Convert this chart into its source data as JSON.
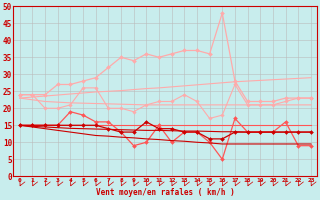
{
  "x": [
    0,
    1,
    2,
    3,
    4,
    5,
    6,
    7,
    8,
    9,
    10,
    11,
    12,
    13,
    14,
    15,
    16,
    17,
    18,
    19,
    20,
    21,
    22,
    23
  ],
  "series": [
    {
      "color": "#FFAAAA",
      "linewidth": 0.8,
      "marker": "D",
      "markersize": 1.8,
      "y": [
        24,
        24,
        20,
        20,
        21,
        26,
        26,
        20,
        20,
        19,
        21,
        22,
        22,
        24,
        22,
        17,
        18,
        27,
        21,
        21,
        21,
        22,
        23,
        23
      ]
    },
    {
      "color": "#FFAAAA",
      "linewidth": 0.8,
      "marker": null,
      "y": [
        23,
        22.5,
        22,
        21.8,
        21.6,
        21.5,
        21.4,
        21.3,
        21.2,
        21.1,
        21,
        21,
        21,
        21,
        21,
        21,
        21,
        21,
        21,
        21,
        21,
        21,
        21,
        21
      ]
    },
    {
      "color": "#FFAAAA",
      "linewidth": 0.8,
      "marker": null,
      "y": [
        23,
        23.3,
        23.6,
        23.9,
        24.2,
        24.5,
        24.8,
        25.0,
        25.2,
        25.5,
        25.8,
        26.0,
        26.3,
        26.6,
        26.9,
        27.2,
        27.5,
        27.8,
        28.0,
        28.2,
        28.4,
        28.6,
        28.8,
        29.0
      ]
    },
    {
      "color": "#FFAAAA",
      "linewidth": 0.9,
      "marker": "D",
      "markersize": 2.0,
      "y": [
        24,
        24,
        24,
        27,
        27,
        28,
        29,
        32,
        35,
        34,
        36,
        35,
        36,
        37,
        37,
        36,
        48,
        28,
        22,
        22,
        22,
        23,
        23,
        23
      ]
    },
    {
      "color": "#FF5555",
      "linewidth": 0.9,
      "marker": "D",
      "markersize": 2.0,
      "y": [
        15,
        15,
        15,
        15,
        19,
        18,
        16,
        16,
        13,
        9,
        10,
        15,
        10,
        13,
        13,
        10,
        5,
        17,
        13,
        13,
        13,
        16,
        9,
        9
      ]
    },
    {
      "color": "#FF5555",
      "linewidth": 0.8,
      "marker": null,
      "y": [
        15,
        15,
        15,
        15,
        15,
        15,
        15,
        15,
        15,
        15,
        15,
        15,
        15,
        15,
        15,
        15,
        15,
        15,
        15,
        15,
        15,
        15,
        15,
        15
      ]
    },
    {
      "color": "#CC0000",
      "linewidth": 0.9,
      "marker": "D",
      "markersize": 2.0,
      "y": [
        15,
        15,
        15,
        15,
        15,
        15,
        15,
        14,
        13,
        13,
        16,
        14,
        14,
        13,
        13,
        11,
        11,
        13,
        13,
        13,
        13,
        13,
        13,
        13
      ]
    },
    {
      "color": "#CC0000",
      "linewidth": 0.8,
      "marker": null,
      "y": [
        15,
        14.7,
        14.5,
        14.3,
        14.1,
        14.0,
        13.9,
        13.8,
        13.7,
        13.6,
        13.5,
        13.5,
        13.4,
        13.3,
        13.3,
        13.2,
        13.1,
        13.1,
        13.0,
        13.0,
        13.0,
        13.0,
        13.0,
        13.0
      ]
    },
    {
      "color": "#CC0000",
      "linewidth": 0.8,
      "marker": null,
      "y": [
        15,
        14.5,
        14.0,
        13.5,
        13.0,
        12.5,
        12.0,
        11.8,
        11.5,
        11.3,
        11.0,
        10.8,
        10.5,
        10.3,
        10.0,
        9.8,
        9.5,
        9.5,
        9.5,
        9.5,
        9.5,
        9.5,
        9.5,
        9.5
      ]
    }
  ],
  "wind_symbols": true,
  "xlim": [
    -0.5,
    23.5
  ],
  "ylim": [
    0,
    50
  ],
  "yticks": [
    0,
    5,
    10,
    15,
    20,
    25,
    30,
    35,
    40,
    45,
    50
  ],
  "xlabel": "Vent moyen/en rafales ( km/h )",
  "background_color": "#C8EDED",
  "grid_color": "#BBBBBB",
  "tick_color": "#CC0000",
  "label_color": "#CC0000",
  "spine_color": "#CC0000"
}
